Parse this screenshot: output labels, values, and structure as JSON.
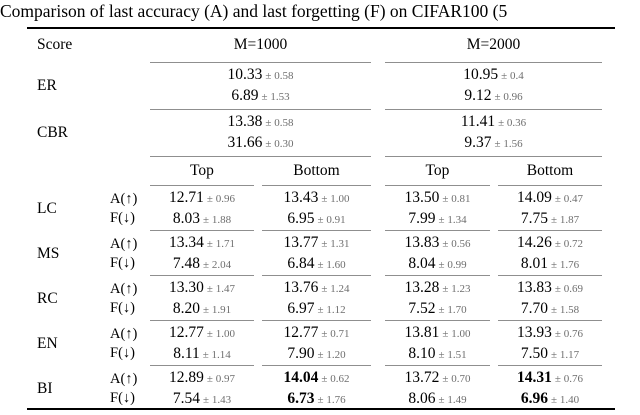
{
  "title": "Comparison of last accuracy (A) and last forgetting (F) on CIFAR100 (5",
  "header": {
    "score": "Score",
    "m1000": "M=1000",
    "m2000": "M=2000"
  },
  "subheader": {
    "top": "Top",
    "bottom": "Bottom"
  },
  "metrics": {
    "accuracy": "A(↑)",
    "forgetting": "F(↓)"
  },
  "colors": {
    "text": "#000000",
    "std_text": "#6e6e6e",
    "heavy_rule": "#000000",
    "light_rule": "#8f8f8f"
  },
  "baseline_rows": [
    {
      "label": "ER",
      "m1000": {
        "a": {
          "v": "10.33",
          "s": "± 0.58"
        },
        "f": {
          "v": "6.89",
          "s": "± 1.53"
        }
      },
      "m2000": {
        "a": {
          "v": "10.95",
          "s": "± 0.4"
        },
        "f": {
          "v": "9.12",
          "s": "± 0.96"
        }
      }
    },
    {
      "label": "CBR",
      "m1000": {
        "a": {
          "v": "13.38",
          "s": "± 0.58"
        },
        "f": {
          "v": "31.66",
          "s": "± 0.30"
        }
      },
      "m2000": {
        "a": {
          "v": "11.41",
          "s": "± 0.36"
        },
        "f": {
          "v": "9.37",
          "s": "± 1.56"
        }
      }
    }
  ],
  "method_rows": [
    {
      "label": "LC",
      "cells": [
        {
          "a": {
            "v": "12.71",
            "s": "± 0.96"
          },
          "f": {
            "v": "8.03",
            "s": "± 1.88"
          }
        },
        {
          "a": {
            "v": "13.43",
            "s": "± 1.00"
          },
          "f": {
            "v": "6.95",
            "s": "± 0.91"
          }
        },
        {
          "a": {
            "v": "13.50",
            "s": "± 0.81"
          },
          "f": {
            "v": "7.99",
            "s": "± 1.34"
          }
        },
        {
          "a": {
            "v": "14.09",
            "s": "± 0.47"
          },
          "f": {
            "v": "7.75",
            "s": "± 1.87"
          }
        }
      ]
    },
    {
      "label": "MS",
      "cells": [
        {
          "a": {
            "v": "13.34",
            "s": "± 1.71"
          },
          "f": {
            "v": "7.48",
            "s": "± 2.04"
          }
        },
        {
          "a": {
            "v": "13.77",
            "s": "± 1.31"
          },
          "f": {
            "v": "6.84",
            "s": "± 1.60"
          }
        },
        {
          "a": {
            "v": "13.83",
            "s": "± 0.56"
          },
          "f": {
            "v": "8.04",
            "s": "± 0.99"
          }
        },
        {
          "a": {
            "v": "14.26",
            "s": "± 0.72"
          },
          "f": {
            "v": "8.01",
            "s": "± 1.76"
          }
        }
      ]
    },
    {
      "label": "RC",
      "cells": [
        {
          "a": {
            "v": "13.30",
            "s": "± 1.47"
          },
          "f": {
            "v": "8.20",
            "s": "± 1.91"
          }
        },
        {
          "a": {
            "v": "13.76",
            "s": "± 1.24"
          },
          "f": {
            "v": "6.97",
            "s": "± 1.12"
          }
        },
        {
          "a": {
            "v": "13.28",
            "s": "± 1.23"
          },
          "f": {
            "v": "7.52",
            "s": "± 1.70"
          }
        },
        {
          "a": {
            "v": "13.83",
            "s": "± 0.69"
          },
          "f": {
            "v": "7.70",
            "s": "± 1.58"
          }
        }
      ]
    },
    {
      "label": "EN",
      "cells": [
        {
          "a": {
            "v": "12.77",
            "s": "± 1.00"
          },
          "f": {
            "v": "8.11",
            "s": "± 1.14"
          }
        },
        {
          "a": {
            "v": "12.77",
            "s": "± 0.71"
          },
          "f": {
            "v": "7.90",
            "s": "± 1.20"
          }
        },
        {
          "a": {
            "v": "13.81",
            "s": "± 1.00"
          },
          "f": {
            "v": "8.10",
            "s": "± 1.51"
          }
        },
        {
          "a": {
            "v": "13.93",
            "s": "± 0.76"
          },
          "f": {
            "v": "7.50",
            "s": "± 1.17"
          }
        }
      ]
    },
    {
      "label": "BI",
      "cells": [
        {
          "a": {
            "v": "12.89",
            "s": "± 0.97"
          },
          "f": {
            "v": "7.54",
            "s": "± 1.43"
          }
        },
        {
          "a": {
            "v": "14.04",
            "s": "± 0.62"
          },
          "f": {
            "v": "6.73",
            "s": "± 1.76"
          }
        },
        {
          "a": {
            "v": "13.72",
            "s": "± 0.70"
          },
          "f": {
            "v": "8.06",
            "s": "± 1.49"
          }
        },
        {
          "a": {
            "v": "14.31",
            "s": "± 0.76"
          },
          "f": {
            "v": "6.96",
            "s": "± 1.40"
          }
        }
      ]
    }
  ]
}
